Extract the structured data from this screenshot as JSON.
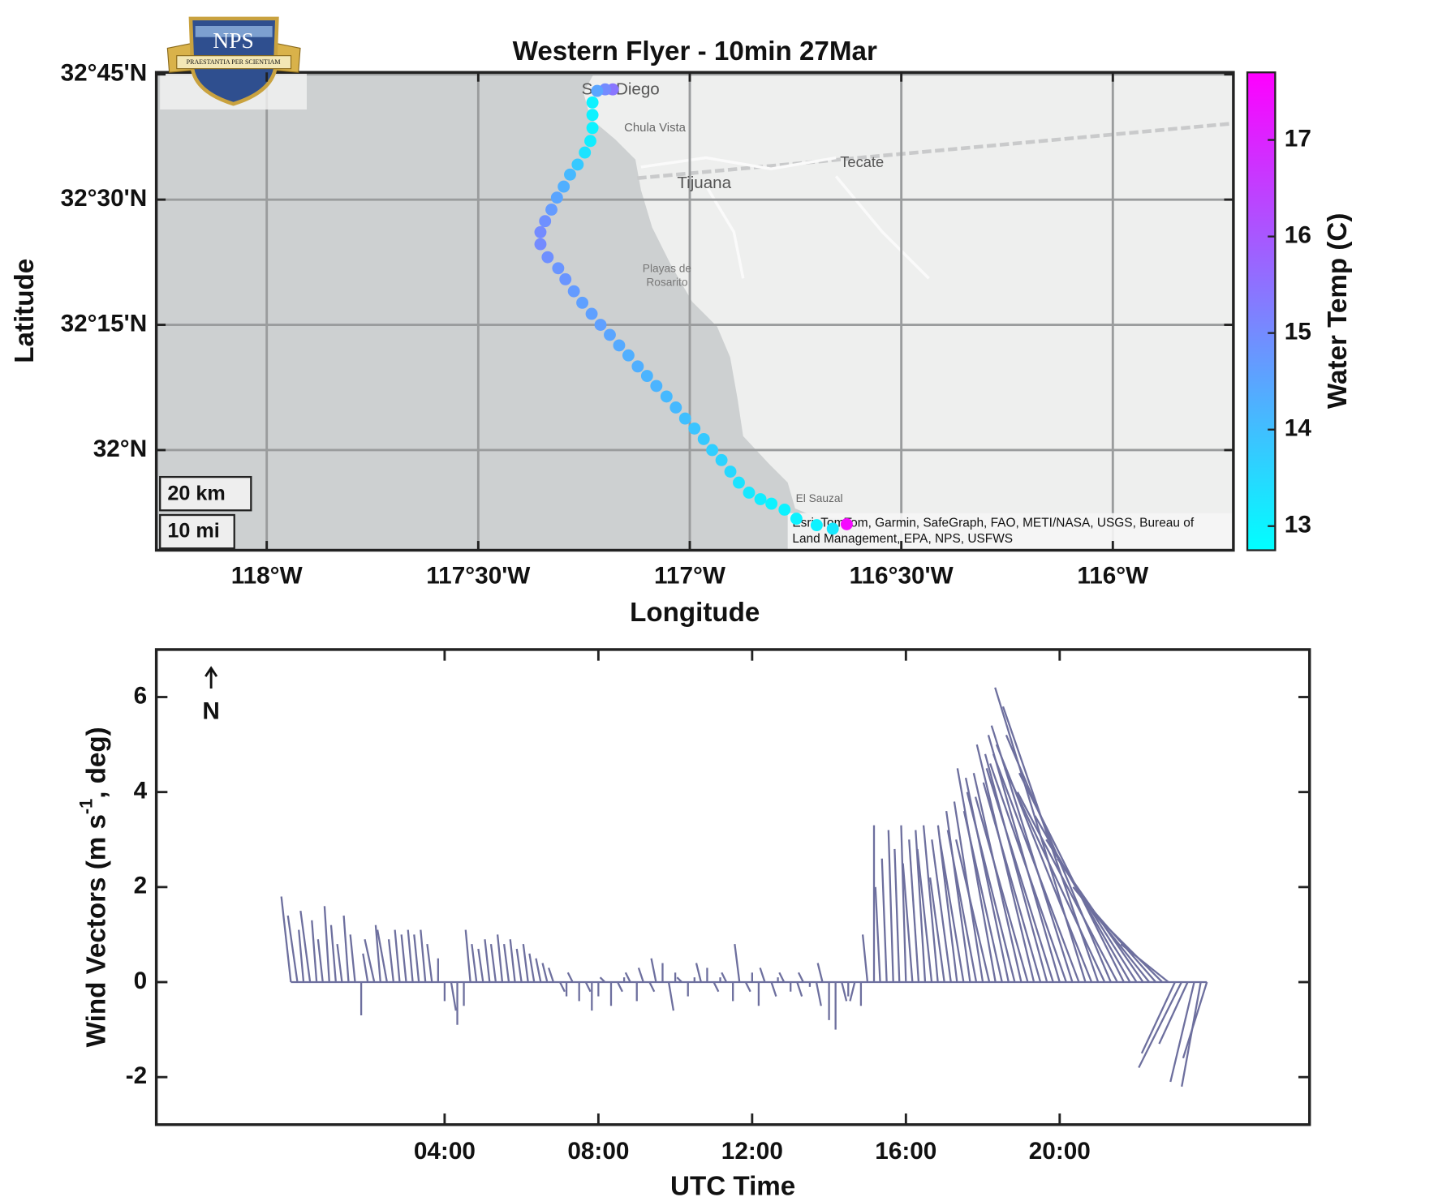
{
  "logo": {
    "text": "NPS",
    "motto": "PRAESTANTIA PER SCIENTIAM"
  },
  "chart_data": [
    {
      "type": "scatter",
      "title": "Western Flyer - 10min 27Mar",
      "xlabel": "Longitude",
      "ylabel": "Latitude",
      "x": [
        -117.182,
        -117.2,
        -117.219,
        -117.23,
        -117.23,
        -117.23,
        -117.235,
        -117.248,
        -117.265,
        -117.283,
        -117.298,
        -117.314,
        -117.327,
        -117.342,
        -117.353,
        -117.353,
        -117.336,
        -117.311,
        -117.294,
        -117.274,
        -117.254,
        -117.232,
        -117.211,
        -117.189,
        -117.167,
        -117.145,
        -117.123,
        -117.101,
        -117.079,
        -117.055,
        -117.033,
        -117.011,
        -116.989,
        -116.967,
        -116.947,
        -116.925,
        -116.904,
        -116.884,
        -116.86,
        -116.833,
        -116.807,
        -116.776,
        -116.748,
        -116.7,
        -116.662,
        -116.629
      ],
      "y": [
        32.72,
        32.72,
        32.717,
        32.694,
        32.669,
        32.643,
        32.617,
        32.594,
        32.57,
        32.55,
        32.526,
        32.504,
        32.48,
        32.457,
        32.435,
        32.411,
        32.385,
        32.363,
        32.341,
        32.317,
        32.294,
        32.272,
        32.25,
        32.23,
        32.209,
        32.189,
        32.167,
        32.148,
        32.128,
        32.107,
        32.085,
        32.063,
        32.043,
        32.022,
        32.0,
        31.98,
        31.957,
        31.935,
        31.915,
        31.902,
        31.893,
        31.881,
        31.863,
        31.85,
        31.843,
        31.852
      ],
      "color_values": [
        15.4,
        15.0,
        14.5,
        13.0,
        13.0,
        13.0,
        13.1,
        13.3,
        13.8,
        14.1,
        14.3,
        14.5,
        14.7,
        14.9,
        15.0,
        15.0,
        14.9,
        14.8,
        14.8,
        14.7,
        14.6,
        14.6,
        14.6,
        14.5,
        14.4,
        14.3,
        14.3,
        14.2,
        14.2,
        14.1,
        14.1,
        14.0,
        13.9,
        13.8,
        13.7,
        13.6,
        13.5,
        13.3,
        13.2,
        13.1,
        13.0,
        13.0,
        13.0,
        13.0,
        13.2,
        17.5
      ],
      "xlim": [
        -118.261,
        -115.715
      ],
      "ylim": [
        31.8,
        32.754
      ],
      "xticks": [
        {
          "value": -118,
          "label": "118°W"
        },
        {
          "value": -117.5,
          "label": "117°30'W"
        },
        {
          "value": -117,
          "label": "117°W"
        },
        {
          "value": -116.5,
          "label": "116°30'W"
        },
        {
          "value": -116,
          "label": "116°W"
        }
      ],
      "yticks": [
        {
          "value": 32,
          "label": "32°N"
        },
        {
          "value": 32.25,
          "label": "32°15'N"
        },
        {
          "value": 32.5,
          "label": "32°30'N"
        },
        {
          "value": 32.75,
          "label": "32°45'N"
        }
      ],
      "grid": true,
      "colorbar": {
        "label": "Water Temp (C)",
        "colormap": "cool",
        "clim": [
          12.75,
          17.7
        ],
        "ticks": [
          13,
          14,
          15,
          16,
          17
        ]
      },
      "map_labels": [
        "San Diego",
        "Chula Vista",
        "Tijuana",
        "Tecate",
        "Playas de",
        "Rosarito",
        "El Sauzal"
      ],
      "attribution": [
        "Esri, TomTom, Garmin, SafeGraph, FAO, METI/NASA, USGS, Bureau of",
        "Land Management, EPA, NPS, USFWS"
      ],
      "scale_bar": [
        "20 km",
        "10 mi"
      ]
    },
    {
      "type": "quiver",
      "xlabel": "UTC Time",
      "ylabel": [
        "Wind Vectors (m s",
        "-1",
        ", deg)"
      ],
      "annotation": "N",
      "color": "#6d6f9e",
      "x": [
        0,
        0.17,
        0.33,
        0.5,
        0.67,
        0.83,
        1,
        1.17,
        1.33,
        1.5,
        1.67,
        1.83,
        2,
        2.17,
        2.33,
        2.5,
        2.67,
        2.83,
        3,
        3.17,
        3.33,
        3.5,
        3.67,
        3.83,
        4,
        4.17,
        4.33,
        4.5,
        4.67,
        4.83,
        5,
        5.17,
        5.33,
        5.5,
        5.67,
        5.83,
        6,
        6.17,
        6.33,
        6.5,
        6.67,
        6.83,
        7,
        7.17,
        7.33,
        7.5,
        7.67,
        7.83,
        8,
        8.17,
        8.33,
        8.5,
        8.67,
        8.83,
        9,
        9.17,
        9.33,
        9.5,
        9.67,
        9.83,
        10,
        10.17,
        10.33,
        10.5,
        10.67,
        10.83,
        11,
        11.17,
        11.33,
        11.5,
        11.67,
        11.83,
        12,
        12.17,
        12.33,
        12.5,
        12.67,
        12.83,
        13,
        13.17,
        13.33,
        13.5,
        13.67,
        13.83,
        14,
        14.17,
        14.33,
        14.5,
        14.67,
        14.83,
        15,
        15.17,
        15.33,
        15.5,
        15.67,
        15.83,
        16,
        16.17,
        16.33,
        16.5,
        16.67,
        16.83,
        17,
        17.17,
        17.33,
        17.5,
        17.67,
        17.83,
        18,
        18.17,
        18.33,
        18.5,
        18.67,
        18.83,
        19,
        19.17,
        19.33,
        19.5,
        19.67,
        19.83,
        20,
        20.17,
        20.33,
        20.5,
        20.67,
        20.83,
        21,
        21.17,
        21.33,
        21.5,
        21.67,
        21.83,
        22,
        22.17,
        22.33,
        22.5,
        22.67,
        22.83,
        23,
        23.17,
        23.33,
        23.5,
        23.67,
        23.83
      ],
      "u": [
        -0.2,
        -0.2,
        -0.1,
        -0.2,
        -0.1,
        -0.1,
        -0.1,
        -0.1,
        -0.1,
        -0.1,
        -0.1,
        0.0,
        -0.1,
        -0.2,
        -0.1,
        -0.2,
        -0.1,
        -0.1,
        -0.1,
        -0.1,
        -0.1,
        -0.1,
        -0.1,
        0.0,
        0.0,
        0.1,
        0.0,
        0.0,
        -0.1,
        -0.1,
        -0.1,
        -0.1,
        -0.1,
        -0.1,
        -0.1,
        -0.1,
        -0.1,
        -0.1,
        -0.1,
        -0.1,
        -0.1,
        -0.1,
        0.1,
        0.0,
        -0.1,
        0.0,
        0.1,
        0.0,
        0.0,
        -0.1,
        0.0,
        0.1,
        0.0,
        -0.1,
        0.0,
        -0.1,
        0.1,
        -0.1,
        0.0,
        0.1,
        0.0,
        -0.1,
        0.0,
        0.0,
        -0.1,
        0.0,
        0.1,
        0.0,
        -0.1,
        0.0,
        -0.1,
        0.1,
        0.0,
        0.0,
        -0.1,
        0.1,
        0.0,
        -0.1,
        0.0,
        0.1,
        -0.1,
        0.0,
        0.1,
        -0.1,
        0.0,
        0.0,
        0.1,
        0.0,
        -0.1,
        0.0,
        -0.1,
        0.0,
        -0.1,
        -0.1,
        -0.1,
        -0.1,
        -0.1,
        -0.2,
        -0.2,
        -0.2,
        -0.3,
        -0.3,
        -0.3,
        -0.4,
        -0.4,
        -0.5,
        -0.5,
        -0.6,
        -0.6,
        -0.7,
        -0.8,
        -0.8,
        -0.9,
        -1.0,
        -1.0,
        -1.1,
        -1.2,
        -1.2,
        -1.3,
        -1.4,
        -1.5,
        -1.6,
        -1.7,
        -1.8,
        -1.9,
        -2.0,
        -2.0,
        -2.1,
        -2.2,
        -2.1,
        -2.2,
        -2.0,
        -1.9,
        -1.8,
        -1.6,
        -1.4,
        -1.2,
        -1.0,
        -0.7,
        -0.9,
        -0.6,
        -0.5,
        -0.4,
        -0.5
      ],
      "v": [
        1.8,
        1.4,
        1.1,
        1.5,
        1.3,
        0.9,
        1.6,
        1.2,
        0.8,
        1.4,
        1.0,
        -0.7,
        0.6,
        0.9,
        1.2,
        1.1,
        0.9,
        1.1,
        1.0,
        1.1,
        1.0,
        1.1,
        0.8,
        0.5,
        -0.4,
        -0.6,
        -0.9,
        -0.5,
        1.1,
        0.8,
        0.7,
        0.9,
        0.8,
        1.0,
        0.8,
        0.9,
        0.7,
        0.8,
        0.6,
        0.5,
        0.4,
        0.3,
        -0.2,
        -0.3,
        0.2,
        -0.4,
        -0.2,
        -0.6,
        -0.3,
        0.1,
        -0.5,
        -0.2,
        0.1,
        0.2,
        -0.4,
        0.3,
        -0.2,
        0.5,
        0.4,
        -0.6,
        0.2,
        0.1,
        -0.3,
        0.1,
        0.4,
        0.3,
        -0.2,
        0.1,
        0.2,
        -0.4,
        0.8,
        -0.2,
        0.2,
        -0.5,
        0.3,
        -0.3,
        0.1,
        0.2,
        -0.2,
        -0.3,
        0.2,
        -0.1,
        -0.5,
        0.4,
        -0.8,
        -1.0,
        -0.4,
        -0.3,
        -0.4,
        -0.5,
        1.0,
        3.3,
        2.0,
        2.6,
        3.2,
        2.8,
        3.3,
        2.5,
        3.0,
        3.2,
        2.8,
        3.3,
        2.2,
        3.0,
        3.3,
        3.0,
        3.6,
        3.2,
        3.8,
        3.0,
        4.5,
        3.6,
        4.3,
        4.0,
        4.4,
        3.9,
        5.0,
        4.2,
        4.8,
        4.5,
        5.2,
        4.6,
        5.4,
        4.8,
        6.2,
        5.0,
        5.8,
        4.5,
        5.2,
        4.0,
        4.4,
        3.5,
        3.0,
        2.6,
        2.0,
        1.6,
        1.2,
        0.8,
        -1.5,
        -1.8,
        -1.3,
        -2.1,
        -2.2,
        -1.6
      ],
      "xlim": [
        -3.5,
        26.5
      ],
      "ylim": [
        -3,
        7
      ],
      "xticks": [
        {
          "value": 4,
          "label": "04:00"
        },
        {
          "value": 8,
          "label": "08:00"
        },
        {
          "value": 12,
          "label": "12:00"
        },
        {
          "value": 16,
          "label": "16:00"
        },
        {
          "value": 20,
          "label": "20:00"
        }
      ],
      "yticks": [
        -2,
        0,
        2,
        4,
        6
      ]
    }
  ]
}
